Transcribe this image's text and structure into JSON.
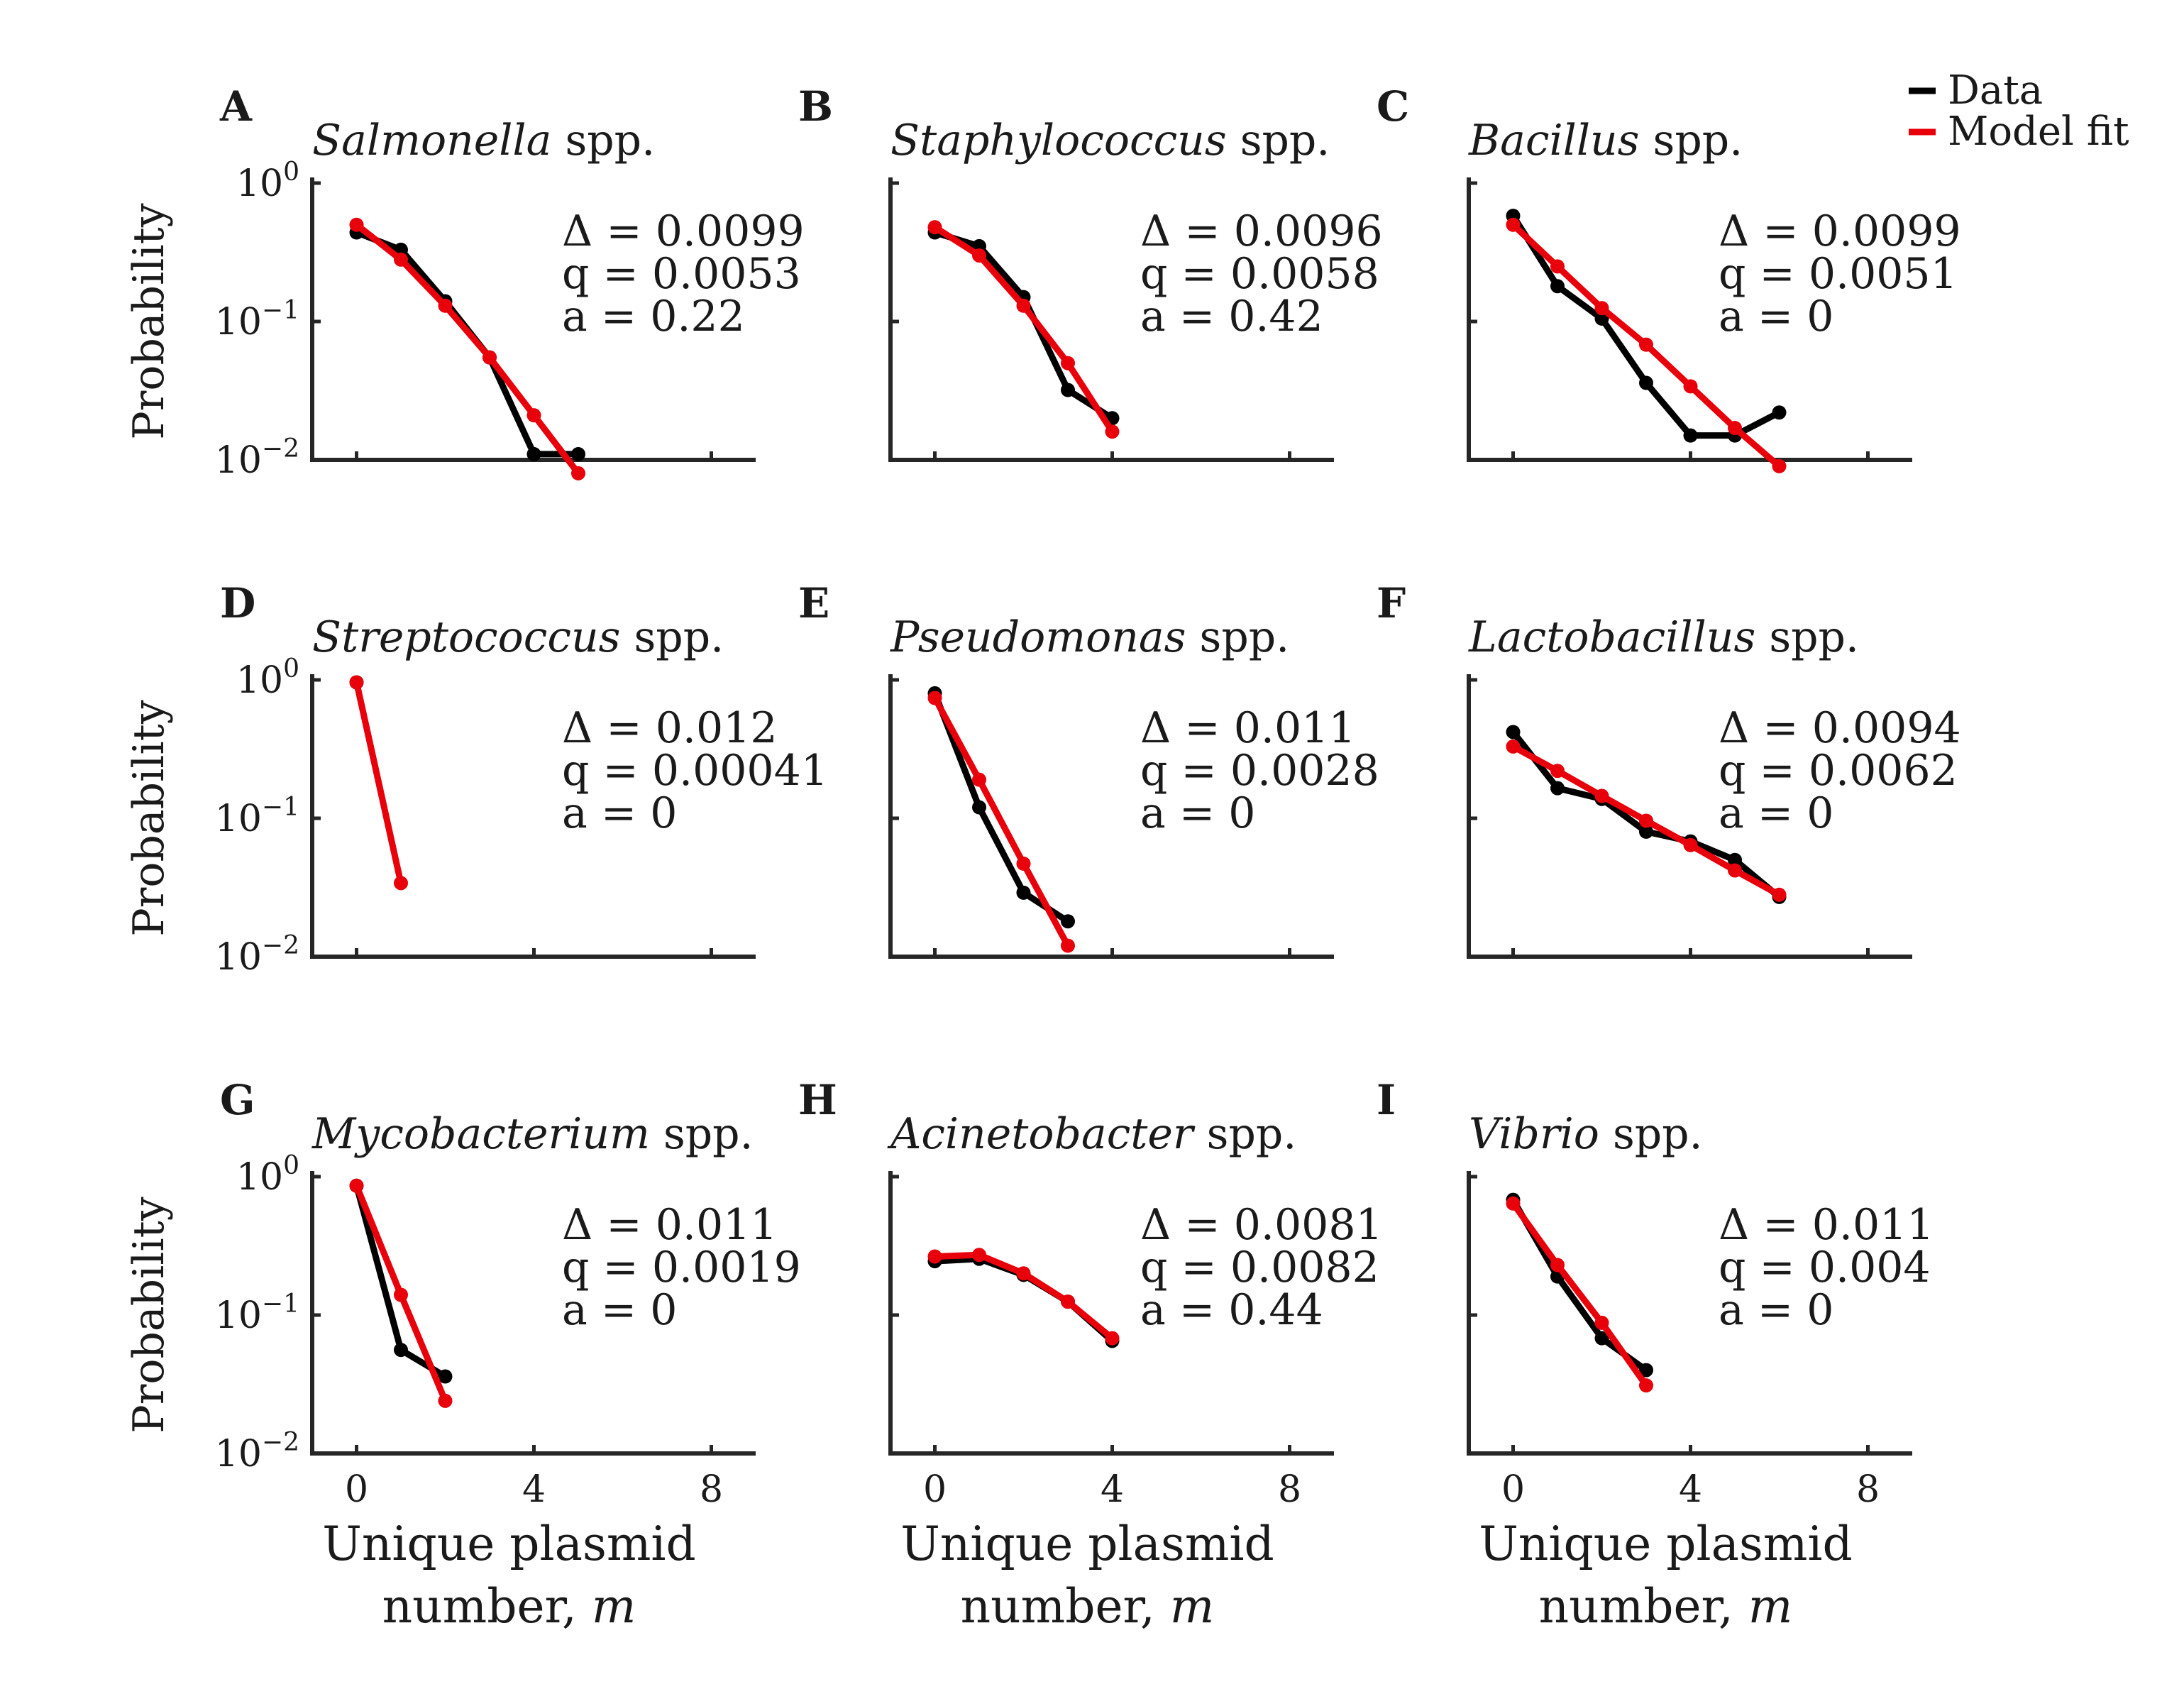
{
  "legend": [
    {
      "label": "Data",
      "color": "#000000"
    },
    {
      "label": "Model fit",
      "color": "#e8000b"
    }
  ],
  "chart_data": [
    {
      "type": "line",
      "panel": "A",
      "title_italic": "Salmonella",
      "title_suffix": " spp.",
      "stats": [
        "Δ = 0.0099",
        "q = 0.0053",
        "a = 0.22"
      ],
      "ylabel": "Probability",
      "xlabel_line1": "",
      "xlabel_line2_prefix": "",
      "xlabel_line2_var": "",
      "yscale": "log",
      "ylim": [
        0.01,
        1
      ],
      "xlim": [
        -1,
        9
      ],
      "yticks": [
        {
          "base": "10",
          "exp": "0"
        },
        {
          "base": "10",
          "exp": "−1"
        },
        {
          "base": "10",
          "exp": "−2"
        }
      ],
      "xticks": [],
      "series": [
        {
          "name": "Data",
          "x": [
            0,
            1,
            2,
            3,
            4,
            5
          ],
          "y": [
            0.44,
            0.33,
            0.14,
            0.055,
            0.011,
            0.011
          ]
        },
        {
          "name": "Model fit",
          "x": [
            0,
            1,
            2,
            3,
            4,
            5
          ],
          "y": [
            0.5,
            0.28,
            0.13,
            0.055,
            0.021,
            0.008
          ]
        }
      ]
    },
    {
      "type": "line",
      "panel": "B",
      "title_italic": "Staphylococcus",
      "title_suffix": " spp.",
      "stats": [
        "Δ = 0.0096",
        "q = 0.0058",
        "a = 0.42"
      ],
      "ylabel": "",
      "xlabel_line1": "",
      "xlabel_line2_prefix": "",
      "xlabel_line2_var": "",
      "yscale": "log",
      "ylim": [
        0.01,
        1
      ],
      "xlim": [
        -1,
        9
      ],
      "yticks": [],
      "xticks": [],
      "series": [
        {
          "name": "Data",
          "x": [
            0,
            1,
            2,
            3,
            4
          ],
          "y": [
            0.44,
            0.35,
            0.15,
            0.032,
            0.02
          ]
        },
        {
          "name": "Model fit",
          "x": [
            0,
            1,
            2,
            3,
            4
          ],
          "y": [
            0.48,
            0.3,
            0.13,
            0.05,
            0.016
          ]
        }
      ]
    },
    {
      "type": "line",
      "panel": "C",
      "title_italic": "Bacillus",
      "title_suffix": " spp.",
      "stats": [
        "Δ = 0.0099",
        "q = 0.0051",
        "a = 0"
      ],
      "ylabel": "",
      "xlabel_line1": "",
      "xlabel_line2_prefix": "",
      "xlabel_line2_var": "",
      "yscale": "log",
      "ylim": [
        0.01,
        1
      ],
      "xlim": [
        -1,
        9
      ],
      "yticks": [],
      "xticks": [],
      "series": [
        {
          "name": "Data",
          "x": [
            0,
            1,
            2,
            3,
            4,
            5,
            6
          ],
          "y": [
            0.58,
            0.18,
            0.105,
            0.036,
            0.015,
            0.015,
            0.022
          ]
        },
        {
          "name": "Model fit",
          "x": [
            0,
            1,
            2,
            3,
            4,
            5,
            6
          ],
          "y": [
            0.5,
            0.25,
            0.125,
            0.068,
            0.034,
            0.017,
            0.009
          ]
        }
      ]
    },
    {
      "type": "line",
      "panel": "D",
      "title_italic": "Streptococcus",
      "title_suffix": " spp.",
      "stats": [
        "Δ = 0.012",
        "q = 0.00041",
        "a = 0"
      ],
      "ylabel": "Probability",
      "xlabel_line1": "",
      "xlabel_line2_prefix": "",
      "xlabel_line2_var": "",
      "yscale": "log",
      "ylim": [
        0.01,
        1
      ],
      "xlim": [
        -1,
        9
      ],
      "yticks": [
        {
          "base": "10",
          "exp": "0"
        },
        {
          "base": "10",
          "exp": "−1"
        },
        {
          "base": "10",
          "exp": "−2"
        }
      ],
      "xticks": [],
      "series": [
        {
          "name": "Data",
          "x": [
            0
          ],
          "y": [
            0.96
          ]
        },
        {
          "name": "Model fit",
          "x": [
            0,
            1
          ],
          "y": [
            0.96,
            0.034
          ]
        }
      ]
    },
    {
      "type": "line",
      "panel": "E",
      "title_italic": "Pseudomonas",
      "title_suffix": " spp.",
      "stats": [
        "Δ = 0.011",
        "q = 0.0028",
        "a = 0"
      ],
      "ylabel": "",
      "xlabel_line1": "",
      "xlabel_line2_prefix": "",
      "xlabel_line2_var": "",
      "yscale": "log",
      "ylim": [
        0.01,
        1
      ],
      "xlim": [
        -1,
        9
      ],
      "yticks": [],
      "xticks": [],
      "series": [
        {
          "name": "Data",
          "x": [
            0,
            1,
            2,
            3
          ],
          "y": [
            0.8,
            0.12,
            0.029,
            0.018
          ]
        },
        {
          "name": "Model fit",
          "x": [
            0,
            1,
            2,
            3
          ],
          "y": [
            0.74,
            0.19,
            0.047,
            0.012
          ]
        }
      ]
    },
    {
      "type": "line",
      "panel": "F",
      "title_italic": "Lactobacillus",
      "title_suffix": " spp.",
      "stats": [
        "Δ = 0.0094",
        "q = 0.0062",
        "a = 0"
      ],
      "ylabel": "",
      "xlabel_line1": "",
      "xlabel_line2_prefix": "",
      "xlabel_line2_var": "",
      "yscale": "log",
      "ylim": [
        0.01,
        1
      ],
      "xlim": [
        -1,
        9
      ],
      "yticks": [],
      "xticks": [],
      "series": [
        {
          "name": "Data",
          "x": [
            0,
            1,
            2,
            3,
            4,
            5,
            6
          ],
          "y": [
            0.42,
            0.165,
            0.138,
            0.08,
            0.068,
            0.05,
            0.027
          ]
        },
        {
          "name": "Model fit",
          "x": [
            0,
            1,
            2,
            3,
            4,
            5,
            6
          ],
          "y": [
            0.33,
            0.22,
            0.145,
            0.096,
            0.064,
            0.042,
            0.028
          ]
        }
      ]
    },
    {
      "type": "line",
      "panel": "G",
      "title_italic": "Mycobacterium",
      "title_suffix": " spp.",
      "stats": [
        "Δ = 0.011",
        "q = 0.0019",
        "a = 0"
      ],
      "ylabel": "Probability",
      "xlabel_line1": "Unique plasmid",
      "xlabel_line2_prefix": "number, ",
      "xlabel_line2_var": "m",
      "yscale": "log",
      "ylim": [
        0.01,
        1
      ],
      "xlim": [
        -1,
        9
      ],
      "yticks": [
        {
          "base": "10",
          "exp": "0"
        },
        {
          "base": "10",
          "exp": "−1"
        },
        {
          "base": "10",
          "exp": "−2"
        }
      ],
      "xticks": [
        "0",
        "4",
        "8"
      ],
      "series": [
        {
          "name": "Data",
          "x": [
            0,
            1,
            2
          ],
          "y": [
            0.86,
            0.056,
            0.036
          ]
        },
        {
          "name": "Model fit",
          "x": [
            0,
            1,
            2
          ],
          "y": [
            0.86,
            0.14,
            0.024
          ]
        }
      ]
    },
    {
      "type": "line",
      "panel": "H",
      "title_italic": "Acinetobacter",
      "title_suffix": " spp.",
      "stats": [
        "Δ = 0.0081",
        "q = 0.0082",
        "a = 0.44"
      ],
      "ylabel": "",
      "xlabel_line1": "Unique plasmid",
      "xlabel_line2_prefix": "number, ",
      "xlabel_line2_var": "m",
      "yscale": "log",
      "ylim": [
        0.01,
        1
      ],
      "xlim": [
        -1,
        9
      ],
      "yticks": [],
      "xticks": [
        "0",
        "4",
        "8"
      ],
      "series": [
        {
          "name": "Data",
          "x": [
            0,
            1,
            2,
            3,
            4
          ],
          "y": [
            0.245,
            0.255,
            0.195,
            0.125,
            0.065
          ]
        },
        {
          "name": "Model fit",
          "x": [
            0,
            1,
            2,
            3,
            4
          ],
          "y": [
            0.265,
            0.272,
            0.2,
            0.125,
            0.068
          ]
        }
      ]
    },
    {
      "type": "line",
      "panel": "I",
      "title_italic": "Vibrio",
      "title_suffix": " spp.",
      "stats": [
        "Δ = 0.011",
        "q = 0.004",
        "a = 0"
      ],
      "ylabel": "",
      "xlabel_line1": "Unique plasmid",
      "xlabel_line2_prefix": "number, ",
      "xlabel_line2_var": "m",
      "yscale": "log",
      "ylim": [
        0.01,
        1
      ],
      "xlim": [
        -1,
        9
      ],
      "yticks": [],
      "xticks": [
        "0",
        "4",
        "8"
      ],
      "series": [
        {
          "name": "Data",
          "x": [
            0,
            1,
            2,
            3
          ],
          "y": [
            0.68,
            0.19,
            0.068,
            0.04
          ]
        },
        {
          "name": "Model fit",
          "x": [
            0,
            1,
            2,
            3
          ],
          "y": [
            0.64,
            0.23,
            0.088,
            0.031
          ]
        }
      ]
    }
  ]
}
